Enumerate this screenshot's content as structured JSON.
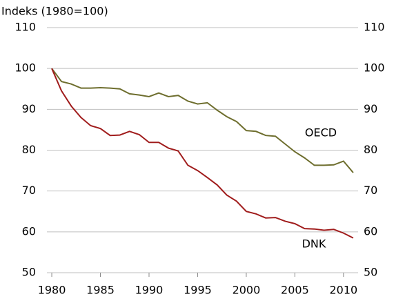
{
  "chart_data": {
    "type": "line",
    "title": "Indeks (1980=100)",
    "x": [
      1980,
      1981,
      1982,
      1983,
      1984,
      1985,
      1986,
      1987,
      1988,
      1989,
      1990,
      1991,
      1992,
      1993,
      1994,
      1995,
      1996,
      1997,
      1998,
      1999,
      2000,
      2001,
      2002,
      2003,
      2004,
      2005,
      2006,
      2007,
      2008,
      2009,
      2010,
      2011
    ],
    "series": [
      {
        "name": "OECD",
        "color": "#6e6e2e",
        "values": [
          100,
          96.8,
          96.2,
          95.2,
          95.2,
          95.3,
          95.2,
          95.0,
          93.8,
          93.5,
          93.1,
          94.0,
          93.1,
          93.4,
          92.0,
          91.3,
          91.6,
          89.8,
          88.2,
          87.0,
          84.8,
          84.6,
          83.6,
          83.4,
          81.5,
          79.6,
          78.1,
          76.3,
          76.3,
          76.4,
          77.3,
          74.5
        ]
      },
      {
        "name": "DNK",
        "color": "#a01c1c",
        "values": [
          100,
          94.5,
          90.8,
          88.0,
          86.0,
          85.3,
          83.6,
          83.7,
          84.6,
          83.8,
          81.9,
          81.9,
          80.5,
          79.8,
          76.3,
          75.0,
          73.3,
          71.5,
          69.0,
          67.5,
          65.0,
          64.4,
          63.4,
          63.5,
          62.6,
          62.0,
          60.8,
          60.7,
          60.4,
          60.6,
          59.7,
          58.5
        ]
      }
    ],
    "xlim": [
      1979.5,
      2011.5
    ],
    "xticks": [
      1980,
      1985,
      1990,
      1995,
      2000,
      2005,
      2010
    ],
    "ylim": [
      50,
      110
    ],
    "yticks": [
      50,
      60,
      70,
      80,
      90,
      100,
      110
    ],
    "y2lim": [
      50,
      110
    ],
    "y2ticks": [
      50,
      60,
      70,
      80,
      90,
      100,
      110
    ],
    "grid": true
  }
}
